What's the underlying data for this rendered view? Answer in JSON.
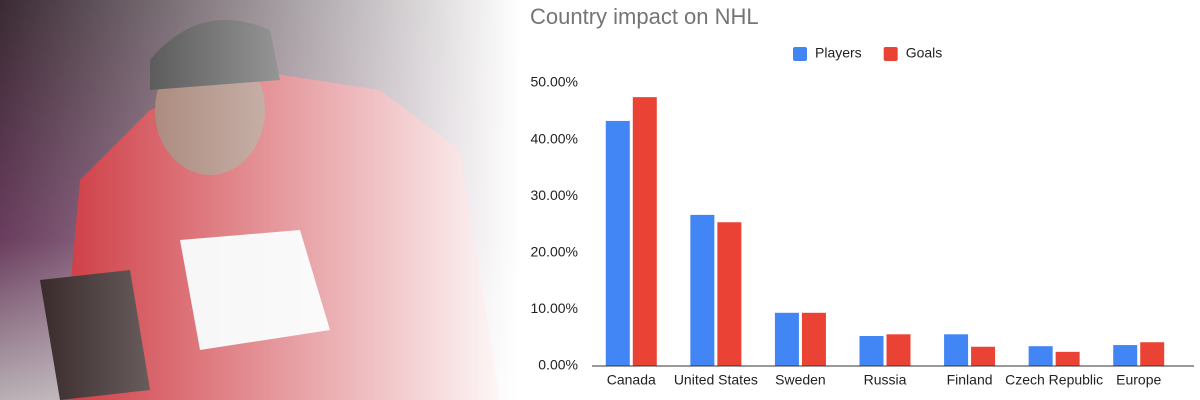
{
  "chart_data": {
    "type": "bar",
    "title": "Country impact on NHL",
    "categories": [
      "Canada",
      "United States",
      "Sweden",
      "Russia",
      "Finland",
      "Czech Republic",
      "Europe"
    ],
    "series": [
      {
        "name": "Players",
        "color": "#4285f4",
        "values": [
          43.3,
          26.7,
          9.4,
          5.3,
          5.6,
          3.5,
          3.7
        ]
      },
      {
        "name": "Goals",
        "color": "#ea4335",
        "values": [
          47.5,
          25.4,
          9.4,
          5.6,
          3.4,
          2.5,
          4.2
        ]
      }
    ],
    "ylim": [
      0,
      50
    ],
    "yticks": [
      {
        "value": 0,
        "label": "0.00%"
      },
      {
        "value": 10,
        "label": "10.00%"
      },
      {
        "value": 20,
        "label": "20.00%"
      },
      {
        "value": 30,
        "label": "30.00%"
      },
      {
        "value": 40,
        "label": "40.00%"
      },
      {
        "value": 50,
        "label": "50.00%"
      }
    ],
    "grid": false,
    "legend": "top"
  }
}
